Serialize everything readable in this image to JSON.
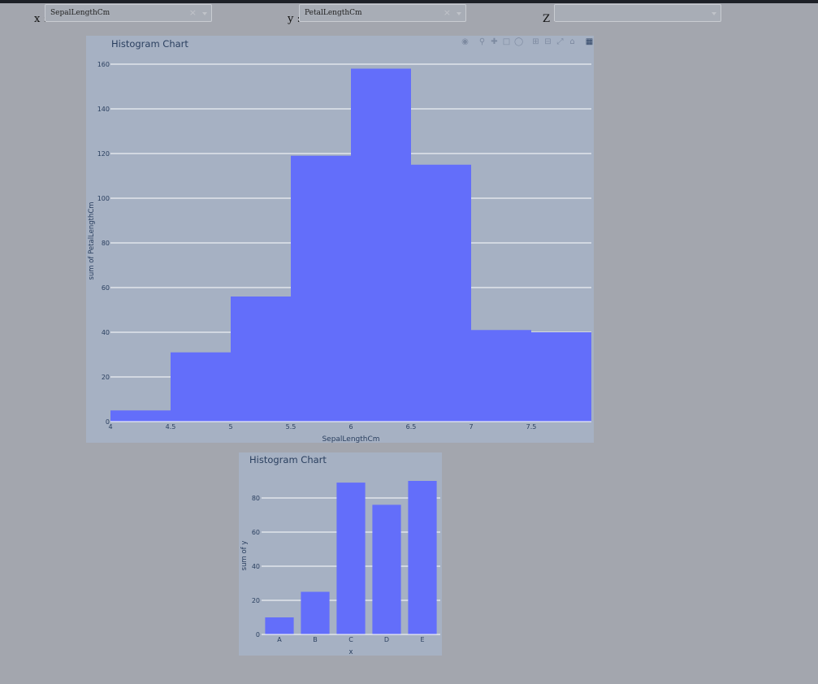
{
  "controls": {
    "x_label": "x :",
    "y_label": "y :",
    "z_label": "Z :",
    "x_value": "SepalLengthCm",
    "y_value": "PetalLengthCm",
    "z_value": "",
    "clear_glyph": "×"
  },
  "modebar": {
    "icons": [
      "camera-icon",
      "zoom-icon",
      "pan-icon",
      "box-select-icon",
      "lasso-icon",
      "zoom-in-icon",
      "zoom-out-icon",
      "autoscale-icon",
      "reset-axes-icon",
      "plotly-logo-icon"
    ]
  },
  "colors": {
    "bar": "#636efa",
    "panel_bg": "#a6b1c3",
    "page_bg": "#a3a6ae",
    "grid": "#ffffff",
    "text": "#2a3f5f"
  },
  "chart_data": [
    {
      "type": "bar",
      "title": "Histogram Chart",
      "xlabel": "SepalLengthCm",
      "ylabel": "sum of PetalLengthCm",
      "x_bins": [
        [
          4,
          4.5
        ],
        [
          4.5,
          5
        ],
        [
          5,
          5.5
        ],
        [
          5.5,
          6
        ],
        [
          6,
          6.5
        ],
        [
          6.5,
          7
        ],
        [
          7,
          7.5
        ],
        [
          7.5,
          8
        ]
      ],
      "values": [
        5,
        31,
        56,
        119,
        158,
        115,
        41,
        40
      ],
      "x_ticks": [
        "4",
        "4.5",
        "5",
        "5.5",
        "6",
        "6.5",
        "7",
        "7.5"
      ],
      "x_tick_values": [
        4,
        4.5,
        5,
        5.5,
        6,
        6.5,
        7,
        7.5
      ],
      "y_ticks": [
        0,
        20,
        40,
        60,
        80,
        100,
        120,
        140,
        160
      ],
      "ylim": [
        0,
        160
      ],
      "xlim": [
        4,
        8
      ],
      "grid": true
    },
    {
      "type": "bar",
      "title": "Histogram Chart",
      "xlabel": "x",
      "ylabel": "sum of y",
      "categories": [
        "A",
        "B",
        "C",
        "D",
        "E"
      ],
      "values": [
        10,
        25,
        89,
        76,
        90
      ],
      "y_ticks": [
        0,
        20,
        40,
        60,
        80
      ],
      "ylim": [
        0,
        90
      ],
      "grid": true
    }
  ]
}
